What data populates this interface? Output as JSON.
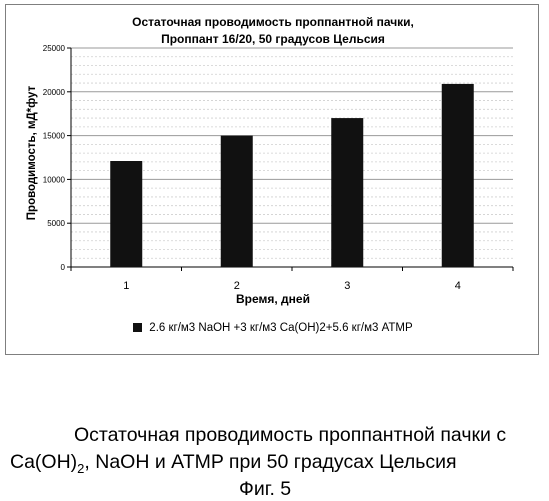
{
  "chart_data": {
    "type": "bar",
    "title": [
      "Остаточная проводимость проппантной пачки,",
      "Проппант 16/20, 50 градусов Цельсия"
    ],
    "xlabel": "Время, дней",
    "ylabel": "Проводимость, мД*фут",
    "categories": [
      "1",
      "2",
      "3",
      "4"
    ],
    "series": [
      {
        "name": "2.6  кг/м3 NaOH +3 кг/м3 Ca(OH)2+5.6 кг/м3 ATMP",
        "values": [
          12100,
          15000,
          17000,
          20900
        ],
        "color": "#111111"
      }
    ],
    "ylim": [
      0,
      25000
    ],
    "yticks": [
      0,
      5000,
      10000,
      15000,
      20000,
      25000
    ],
    "ytick_labels": [
      "0",
      "5000",
      "10000",
      "15000",
      "20000",
      "25000"
    ],
    "grid": true,
    "legend": "bottom"
  },
  "caption": {
    "line1": "Остаточная проводимость проппантной пачки с",
    "line2_pre": "Ca(OH)",
    "line2_sub": "2",
    "line2_post": ", NaOH и ATMP при 50 градусах Цельсия",
    "line3": "Фиг. 5"
  }
}
